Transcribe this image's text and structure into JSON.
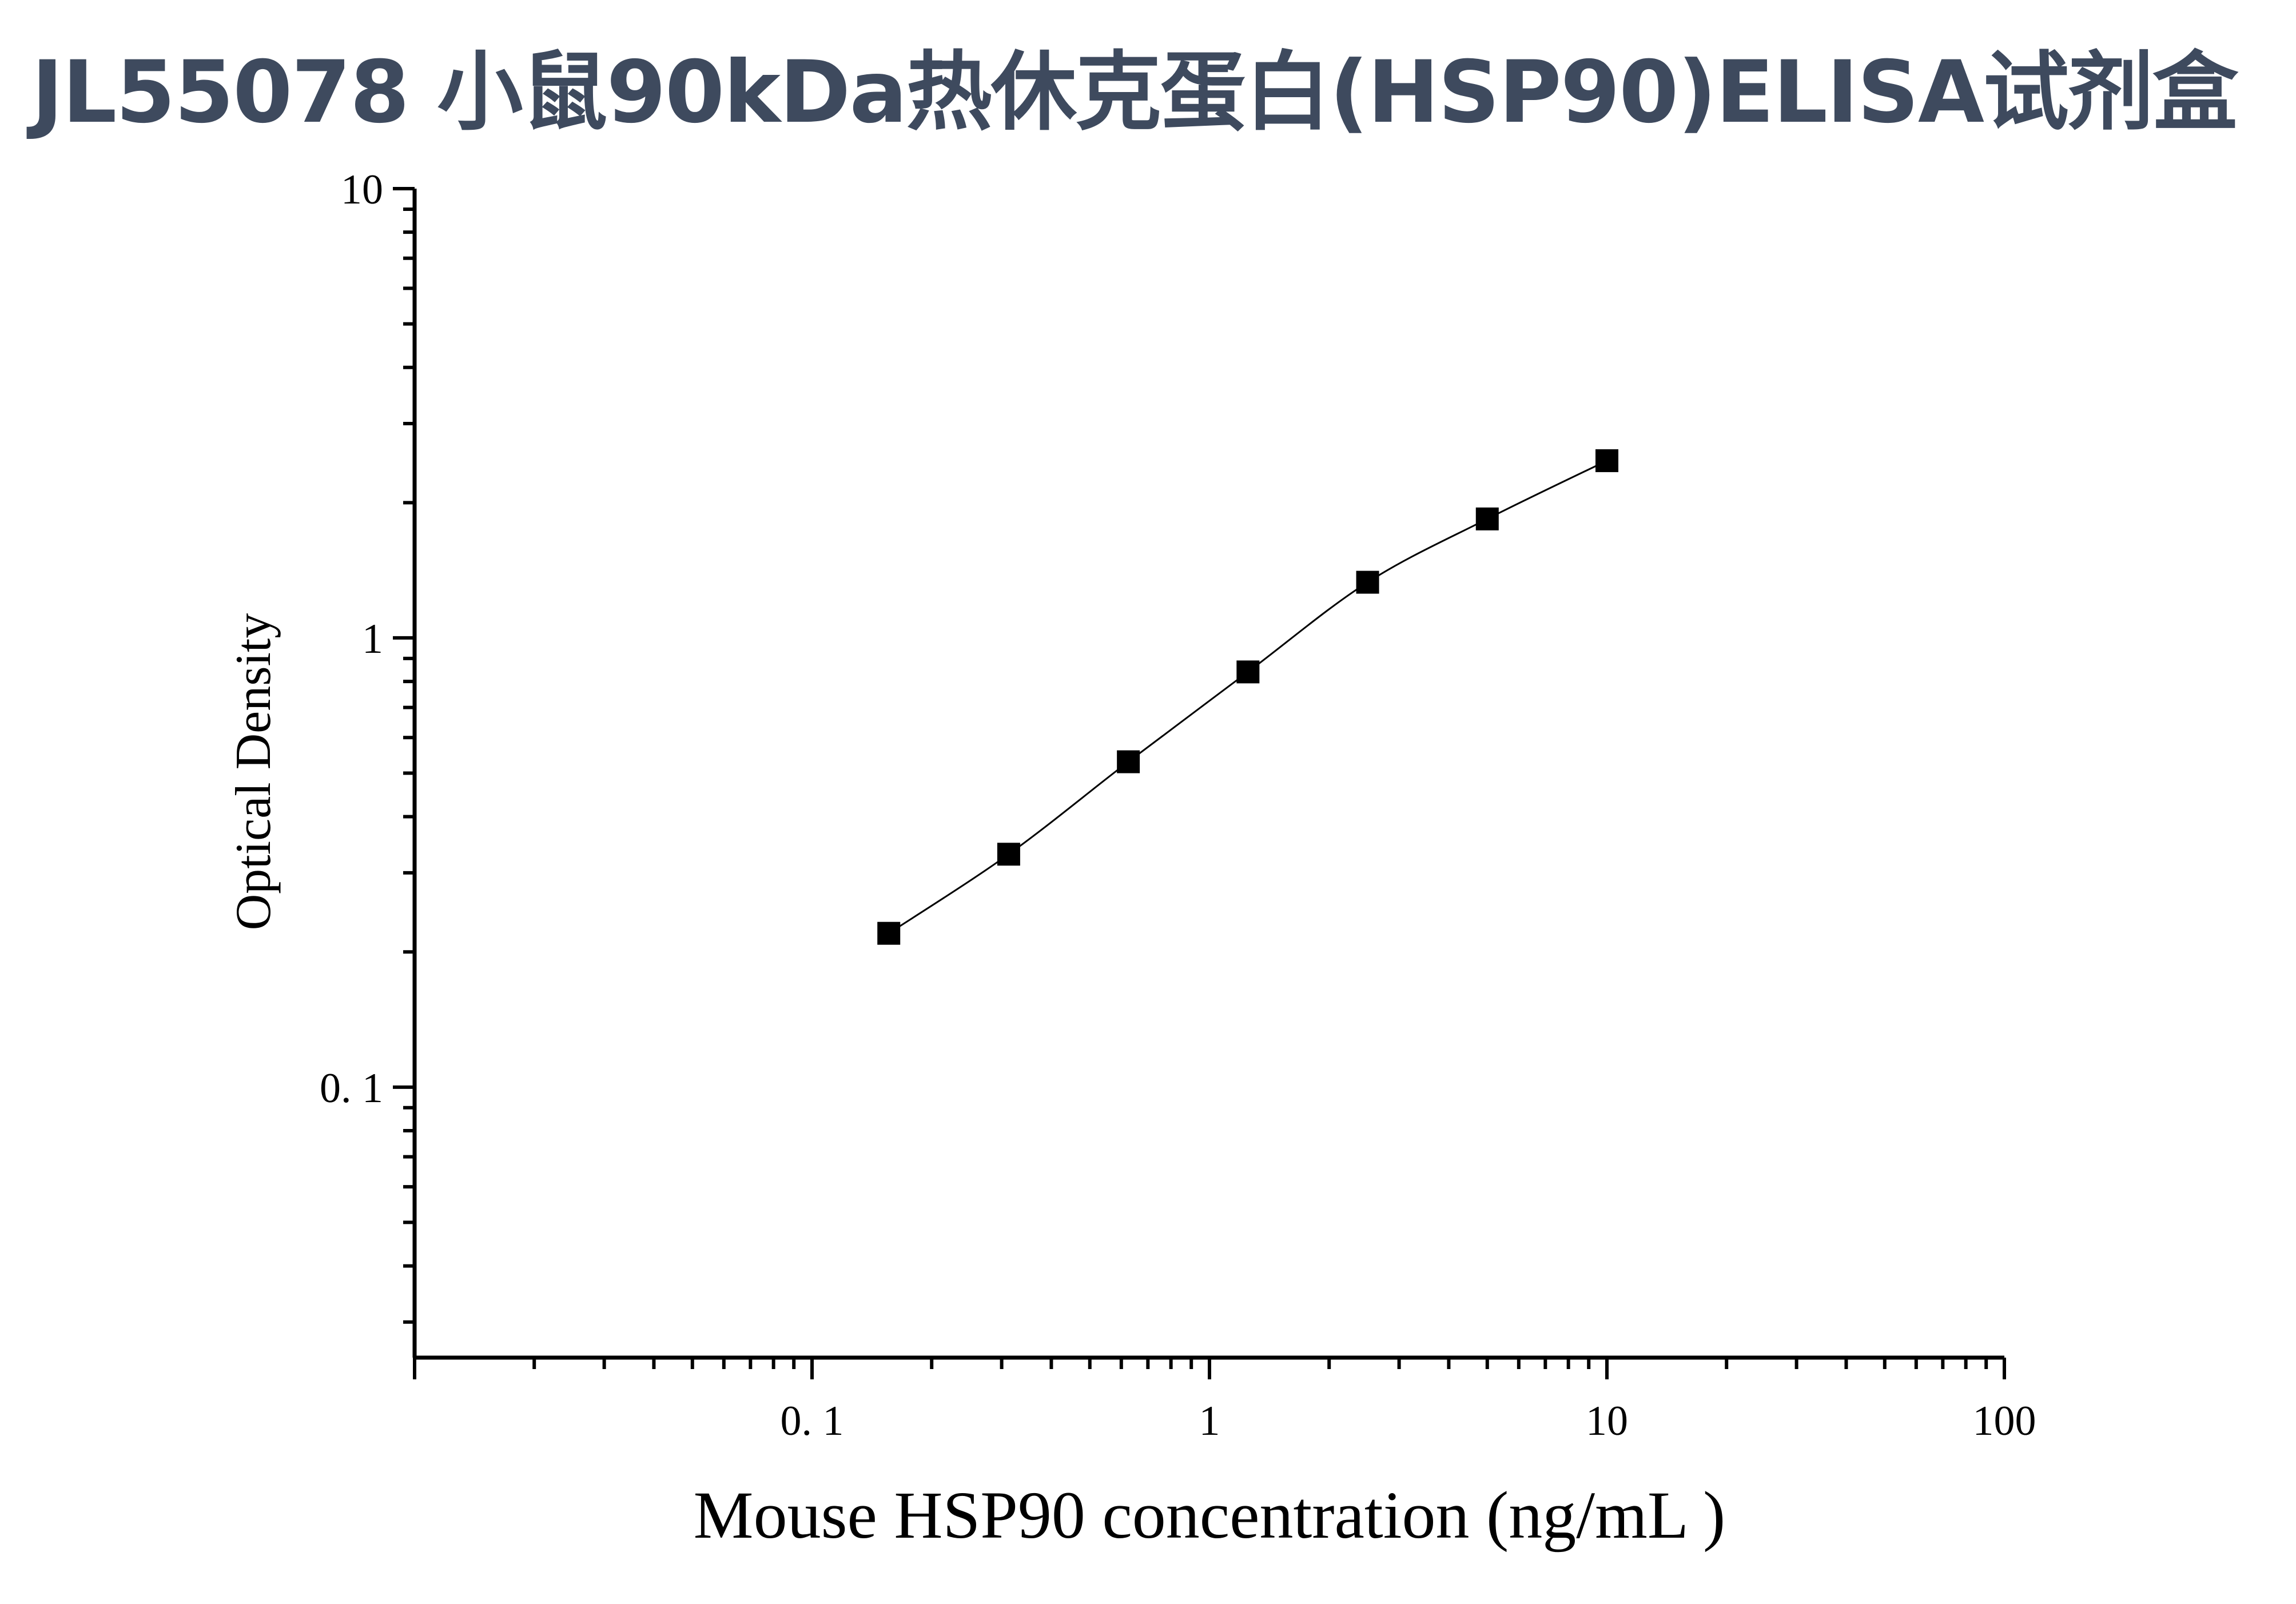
{
  "title": "JL55078 小鼠90kDa热休克蛋白(HSP90)ELISA试剂盒",
  "chart_data": {
    "type": "scatter",
    "xlabel": "Mouse HSP90 concentration (ng/mL )",
    "ylabel": "Optical Density",
    "xscale": "log",
    "yscale": "log",
    "xlim": [
      0.01,
      100
    ],
    "ylim": [
      0.025,
      10
    ],
    "x_ticks": [
      {
        "value": 0.1,
        "label": "0. 1"
      },
      {
        "value": 1,
        "label": "1"
      },
      {
        "value": 10,
        "label": "10"
      },
      {
        "value": 100,
        "label": "100"
      }
    ],
    "y_ticks": [
      {
        "value": 0.1,
        "label": "0. 1"
      },
      {
        "value": 1,
        "label": "1"
      },
      {
        "value": 10,
        "label": "10"
      }
    ],
    "grid": false,
    "marker": "square",
    "fit_curve": true,
    "series": [
      {
        "x": [
          0.156,
          0.3125,
          0.625,
          1.25,
          2.5,
          5,
          10
        ],
        "y": [
          0.22,
          0.33,
          0.53,
          0.84,
          1.33,
          1.84,
          2.48
        ]
      }
    ]
  }
}
